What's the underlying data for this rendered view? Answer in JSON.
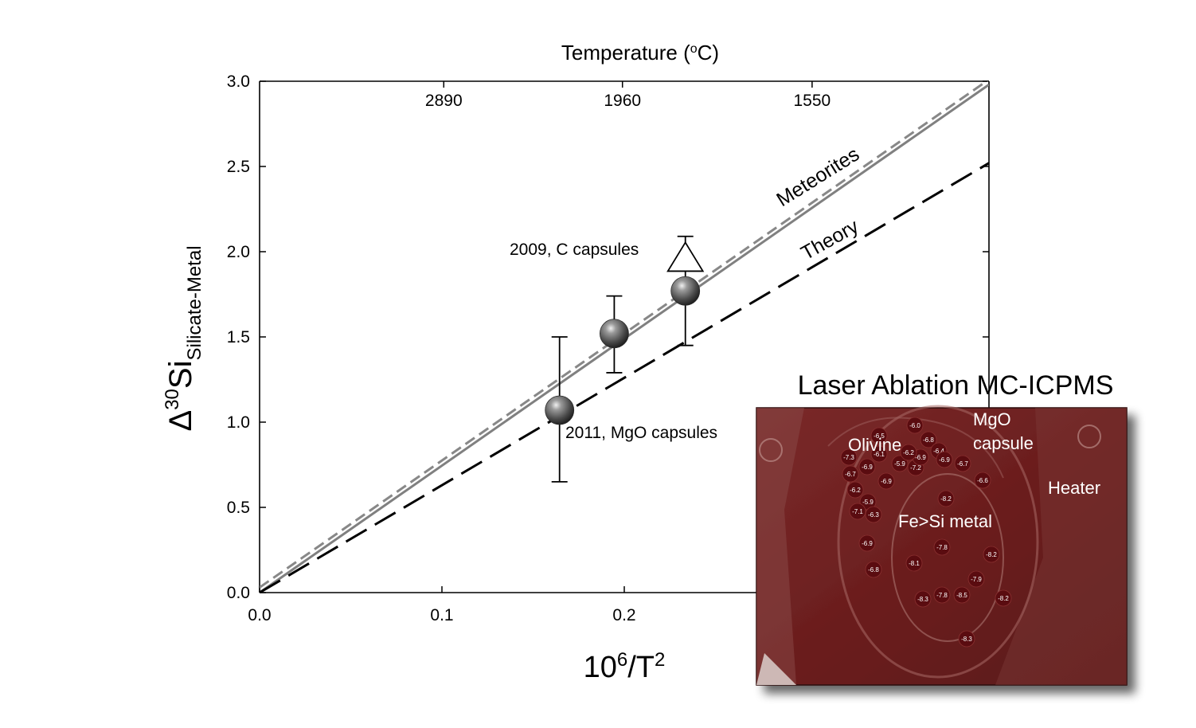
{
  "chart_data": {
    "type": "scatter",
    "xlabel_base": "10",
    "xlabel_exp": "6",
    "xlabel_mid": "/T",
    "xlabel_exp2": "2",
    "ylabel_delta": "Δ",
    "ylabel_sup": "30",
    "ylabel_main": "Si",
    "ylabel_sub": "Silicate-Metal",
    "top_axis_title": "Temperature (",
    "top_axis_title_sup": "o",
    "top_axis_title_end": "C)",
    "xlim": [
      0.0,
      0.4
    ],
    "ylim": [
      0.0,
      3.0
    ],
    "x_ticks": [
      0.0,
      0.1,
      0.2
    ],
    "x_tick_labels": [
      "0.0",
      "0.1",
      "0.2"
    ],
    "y_ticks": [
      0.0,
      0.5,
      1.0,
      1.5,
      2.0,
      2.5,
      3.0
    ],
    "y_tick_labels": [
      "0.0",
      "0.5",
      "1.0",
      "1.5",
      "2.0",
      "2.5",
      "3.0"
    ],
    "top_ticks": [
      {
        "label": "2890",
        "x": 0.101
      },
      {
        "label": "1960",
        "x": 0.199
      },
      {
        "label": "1550",
        "x": 0.303
      }
    ],
    "lines": [
      {
        "name": "Meteorites",
        "slope": 7.45,
        "intercept": 0.0,
        "style": "solid",
        "color": "#808080"
      },
      {
        "name": "Meteorites",
        "slope": 7.45,
        "intercept": 0.03,
        "style": "short-dash",
        "color": "#888888"
      },
      {
        "name": "Theory",
        "slope": 6.3,
        "intercept": 0.0,
        "style": "long-dash",
        "color": "#000000"
      }
    ],
    "series": [
      {
        "name": "2011, MgO capsules",
        "marker": "sphere",
        "points": [
          {
            "x": 0.1645,
            "y": 1.07,
            "yerr_low": 0.65,
            "yerr_high": 1.5
          },
          {
            "x": 0.1945,
            "y": 1.52,
            "yerr_low": 1.29,
            "yerr_high": 1.74
          },
          {
            "x": 0.2335,
            "y": 1.77,
            "yerr_low": 1.45,
            "yerr_high": 2.09
          }
        ]
      },
      {
        "name": "2009, C capsules",
        "marker": "open-triangle",
        "points": [
          {
            "x": 0.2335,
            "y": 1.97
          }
        ]
      }
    ],
    "annotations": {
      "mgo": "2011, MgO capsules",
      "c": "2009, C capsules",
      "meteorites": "Meteorites",
      "theory": "Theory"
    }
  },
  "inset": {
    "title": "Laser Ablation MC-ICPMS",
    "labels": {
      "olivine": "Olivine",
      "mgo_1": "MgO",
      "mgo_2": "capsule",
      "heater": "Heater",
      "metal": "Fe>Si metal"
    },
    "colors": {
      "base": "#6e1f1f",
      "spot": "#5a0c10"
    },
    "spots": [
      {
        "v": "-6.0"
      },
      {
        "v": "-6.5"
      },
      {
        "v": "-6.1"
      },
      {
        "v": "-6.8"
      },
      {
        "v": "-7.3"
      },
      {
        "v": "-6.7"
      },
      {
        "v": "-6.9"
      },
      {
        "v": "-5.9"
      },
      {
        "v": "-7.2"
      },
      {
        "v": "-6.9"
      },
      {
        "v": "-6.4"
      },
      {
        "v": "-6.9"
      },
      {
        "v": "-6.7"
      },
      {
        "v": "-6.2"
      },
      {
        "v": "-6.9"
      },
      {
        "v": "-6.6"
      },
      {
        "v": "-5.9"
      },
      {
        "v": "-7.1"
      },
      {
        "v": "-6.3"
      },
      {
        "v": "-8.2"
      },
      {
        "v": "-6.9"
      },
      {
        "v": "-7.8"
      },
      {
        "v": "-8.2"
      },
      {
        "v": "-8.1"
      },
      {
        "v": "-6.8"
      },
      {
        "v": "-7.9"
      },
      {
        "v": "-8.3"
      },
      {
        "v": "-7.8"
      },
      {
        "v": "-8.5"
      },
      {
        "v": "-8.2"
      },
      {
        "v": "-8.3"
      },
      {
        "v": "-6.2"
      }
    ]
  }
}
